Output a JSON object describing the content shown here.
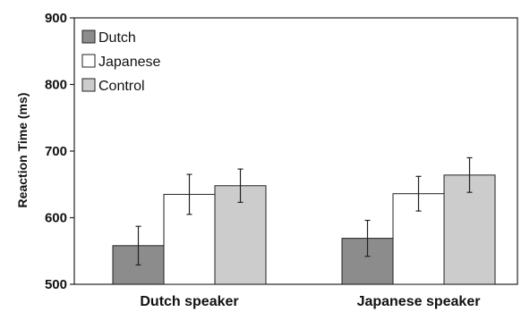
{
  "chart_data": {
    "type": "bar",
    "ylabel": "Reaction Time (ms)",
    "xlabel": "",
    "ylim": [
      500,
      900
    ],
    "yticks": [
      500,
      600,
      700,
      800,
      900
    ],
    "categories": [
      "Dutch speaker",
      "Japanese speaker"
    ],
    "series": [
      {
        "name": "Dutch",
        "values": [
          558,
          569
        ],
        "errors": [
          29,
          27
        ],
        "color": "#8c8c8c"
      },
      {
        "name": "Japanese",
        "values": [
          635,
          636
        ],
        "errors": [
          30,
          26
        ],
        "color": "#ffffff"
      },
      {
        "name": "Control",
        "values": [
          648,
          664
        ],
        "errors": [
          25,
          26
        ],
        "color": "#cccccc"
      }
    ],
    "legend_position": "top-left",
    "grid": false
  }
}
